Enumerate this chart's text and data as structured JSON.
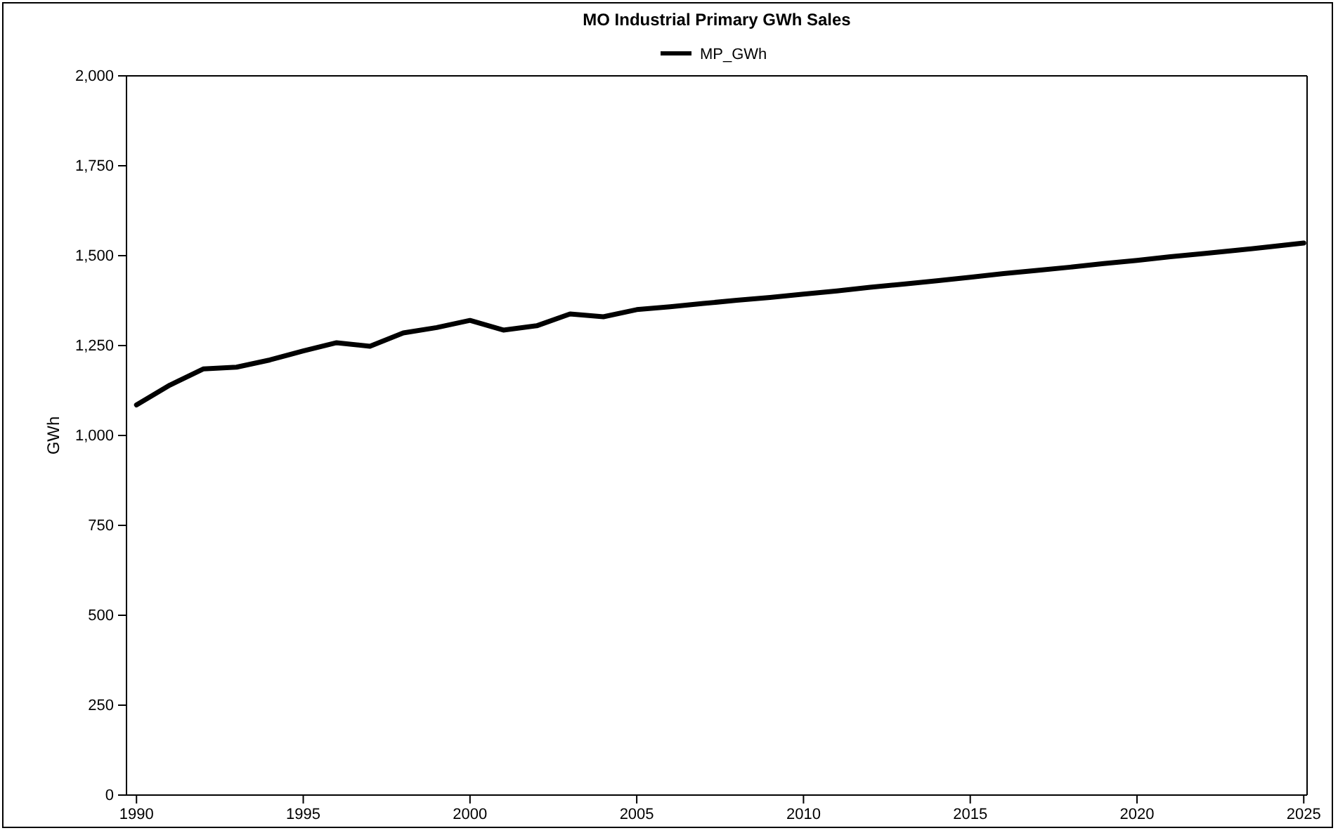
{
  "chart_data": {
    "type": "line",
    "title": "MO Industrial Primary GWh Sales",
    "ylabel": "GWh",
    "x": [
      1990,
      1991,
      1992,
      1993,
      1994,
      1995,
      1996,
      1997,
      1998,
      1999,
      2000,
      2001,
      2002,
      2003,
      2004,
      2005,
      2006,
      2007,
      2008,
      2009,
      2010,
      2011,
      2012,
      2013,
      2014,
      2015,
      2016,
      2017,
      2018,
      2019,
      2020,
      2021,
      2022,
      2023,
      2024,
      2025
    ],
    "series": [
      {
        "name": "MP_GWh",
        "color": "#000000",
        "values": [
          1085,
          1140,
          1185,
          1190,
          1210,
          1235,
          1258,
          1248,
          1285,
          1300,
          1320,
          1293,
          1305,
          1338,
          1330,
          1350,
          1358,
          1367,
          1376,
          1384,
          1393,
          1402,
          1412,
          1421,
          1430,
          1440,
          1450,
          1459,
          1468,
          1478,
          1487,
          1497,
          1506,
          1515,
          1525,
          1535
        ]
      }
    ],
    "xlim": [
      1989.7,
      2025.1
    ],
    "xticks": [
      1990,
      1995,
      2000,
      2005,
      2010,
      2015,
      2020,
      2025
    ],
    "ylim": [
      0,
      2000
    ],
    "yticks": [
      {
        "value": 0,
        "label": "0"
      },
      {
        "value": 250,
        "label": "250"
      },
      {
        "value": 500,
        "label": "500"
      },
      {
        "value": 750,
        "label": "750"
      },
      {
        "value": 1000,
        "label": "1,000"
      },
      {
        "value": 1250,
        "label": "1,250"
      },
      {
        "value": 1500,
        "label": "1,500"
      },
      {
        "value": 1750,
        "label": "1,750"
      },
      {
        "value": 2000,
        "label": "2,000"
      }
    ],
    "grid": false,
    "legend": "top",
    "marker": "none",
    "line_style": "solid"
  }
}
